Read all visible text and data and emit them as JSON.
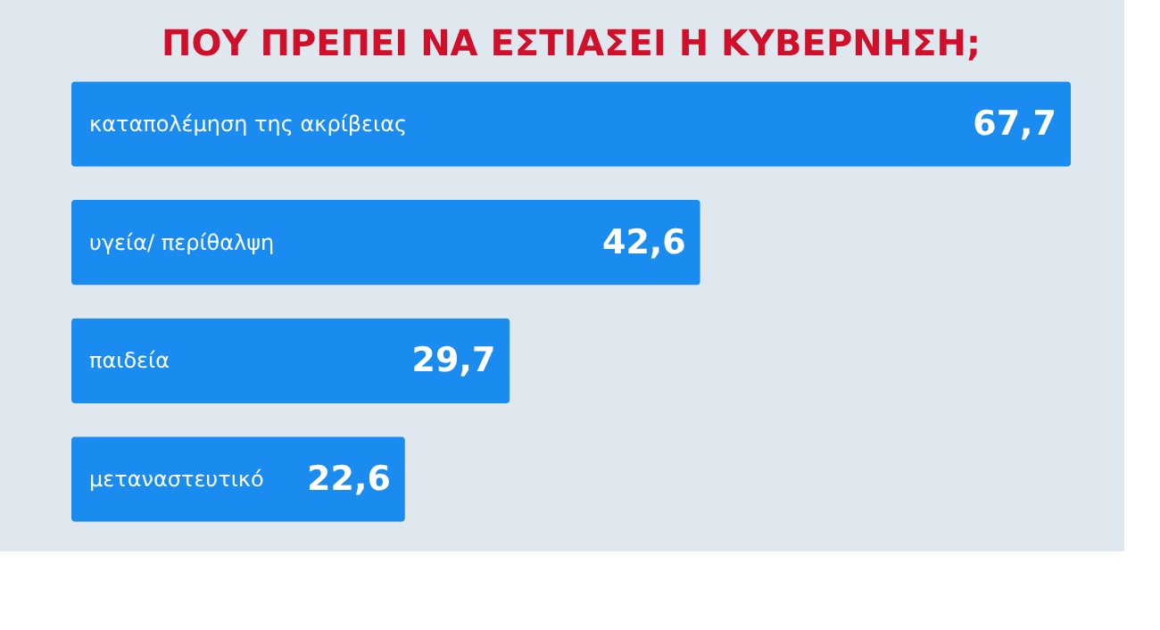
{
  "chart_data": {
    "type": "bar",
    "orientation": "horizontal",
    "title": "ΠΟΥ ΠΡΕΠΕΙ ΝΑ ΕΣΤΙΑΣΕΙ Η ΚΥΒΕΡΝΗΣΗ;",
    "categories": [
      "καταπολέμηση της ακρίβειας",
      "υγεία/ περίθαλψη",
      "παιδεία",
      "μεταναστευτικό"
    ],
    "values": [
      67.7,
      42.6,
      29.7,
      22.6
    ],
    "value_labels": [
      "67,7",
      "42,6",
      "29,7",
      "22,6"
    ],
    "color": "#1a8cf0"
  }
}
